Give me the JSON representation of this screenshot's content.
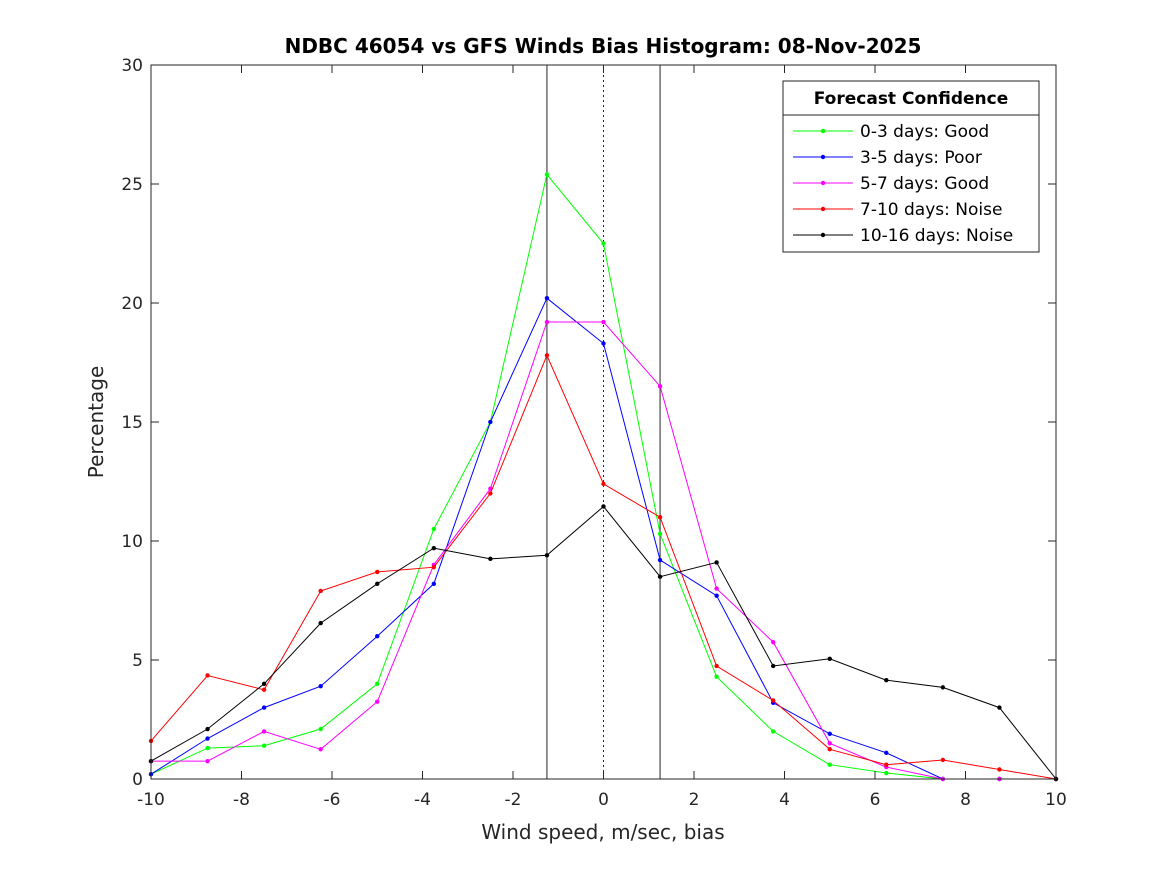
{
  "chart_data": {
    "type": "line",
    "title": "NDBC 46054 vs GFS Winds Bias Histogram: 08-Nov-2025",
    "xlabel": "Wind speed, m/sec, bias",
    "ylabel": "Percentage",
    "xlim": [
      -10,
      10
    ],
    "ylim": [
      0,
      30
    ],
    "xticks": [
      -10,
      -8,
      -6,
      -4,
      -2,
      0,
      2,
      4,
      6,
      8,
      10
    ],
    "yticks": [
      0,
      5,
      10,
      15,
      20,
      25,
      30
    ],
    "grid": false,
    "legend": {
      "title": "Forecast Confidence",
      "location": "top-right"
    },
    "x": [
      -10,
      -8.75,
      -7.5,
      -6.25,
      -5,
      -3.75,
      -2.5,
      -1.25,
      0,
      1.25,
      2.5,
      3.75,
      5,
      6.25,
      7.5,
      8.75,
      10
    ],
    "vertical_lines": [
      {
        "x": -1.25,
        "style": "solid"
      },
      {
        "x": 0,
        "style": "dotted"
      },
      {
        "x": 1.25,
        "style": "solid"
      }
    ],
    "series": [
      {
        "name": "0-3 days: Good",
        "color": "#00ff00",
        "values": [
          0.2,
          1.3,
          1.4,
          2.1,
          4.0,
          10.5,
          15.0,
          25.4,
          22.5,
          10.3,
          4.3,
          2.0,
          0.6,
          0.25,
          0.0,
          0.0,
          0.0
        ]
      },
      {
        "name": "3-5 days: Poor",
        "color": "#0000ff",
        "values": [
          0.2,
          1.7,
          3.0,
          3.9,
          6.0,
          8.2,
          15.0,
          20.2,
          18.3,
          9.2,
          7.7,
          3.2,
          1.9,
          1.1,
          0.0,
          0.0,
          0.0
        ]
      },
      {
        "name": "5-7 days: Good",
        "color": "#ff00ff",
        "values": [
          0.75,
          0.75,
          2.0,
          1.25,
          3.25,
          9.0,
          12.2,
          19.2,
          19.2,
          16.5,
          8.0,
          5.75,
          1.5,
          0.5,
          0.0,
          0.0,
          0.0
        ]
      },
      {
        "name": "7-10 days: Noise",
        "color": "#ff0000",
        "values": [
          1.6,
          4.35,
          3.75,
          7.9,
          8.7,
          8.9,
          12.0,
          17.8,
          12.4,
          11.0,
          4.75,
          3.3,
          1.25,
          0.6,
          0.8,
          0.4,
          0.0
        ]
      },
      {
        "name": "10-16 days: Noise",
        "color": "#000000",
        "values": [
          0.75,
          2.1,
          4.0,
          6.55,
          8.2,
          9.7,
          9.25,
          9.4,
          11.45,
          8.5,
          9.1,
          4.75,
          5.05,
          4.15,
          3.85,
          3.0,
          0.0
        ]
      }
    ]
  }
}
